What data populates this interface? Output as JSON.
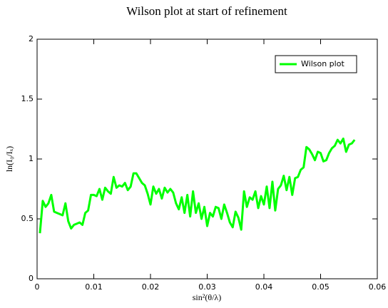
{
  "chart_data": {
    "type": "line",
    "title": "Wilson plot at start of refinement",
    "xlabel": "sin²(θ/λ)",
    "ylabel": "ln(I₀/Iₓ)",
    "xlim": [
      0,
      0.06
    ],
    "xticks": [
      0,
      0.01,
      0.02,
      0.03,
      0.04,
      0.05,
      0.06
    ],
    "ylim": [
      0,
      2
    ],
    "yticks": [
      0,
      0.5,
      1,
      1.5,
      2
    ],
    "legend": "upper right",
    "x": [
      0.0005,
      0.001,
      0.0015,
      0.002,
      0.0025,
      0.003,
      0.0035,
      0.004,
      0.0045,
      0.005,
      0.0055,
      0.006,
      0.0065,
      0.007,
      0.0075,
      0.008,
      0.0085,
      0.009,
      0.0095,
      0.01,
      0.0105,
      0.011,
      0.0115,
      0.012,
      0.0125,
      0.013,
      0.0135,
      0.014,
      0.0145,
      0.015,
      0.0155,
      0.016,
      0.0165,
      0.017,
      0.0175,
      0.018,
      0.0185,
      0.019,
      0.0195,
      0.02,
      0.0205,
      0.021,
      0.0215,
      0.022,
      0.0225,
      0.023,
      0.0235,
      0.024,
      0.0245,
      0.025,
      0.0255,
      0.026,
      0.0265,
      0.027,
      0.0275,
      0.028,
      0.0285,
      0.029,
      0.0295,
      0.03,
      0.0305,
      0.031,
      0.0315,
      0.032,
      0.0325,
      0.033,
      0.0335,
      0.034,
      0.0345,
      0.035,
      0.0355,
      0.036,
      0.0365,
      0.037,
      0.0375,
      0.038,
      0.0385,
      0.039,
      0.0395,
      0.04,
      0.0405,
      0.041,
      0.0415,
      0.042,
      0.0425,
      0.043,
      0.0435,
      0.044,
      0.0445,
      0.045,
      0.0455,
      0.046,
      0.0465,
      0.047,
      0.0475,
      0.048,
      0.0485,
      0.049,
      0.0495,
      0.05,
      0.0505,
      0.051,
      0.0515,
      0.052,
      0.0525,
      0.053,
      0.0535,
      0.054,
      0.0545,
      0.055,
      0.0555,
      0.056
    ],
    "series": [
      {
        "name": "Wilson plot",
        "color": "#00ff00",
        "values": [
          0.38,
          0.65,
          0.6,
          0.63,
          0.7,
          0.56,
          0.55,
          0.54,
          0.53,
          0.63,
          0.48,
          0.42,
          0.45,
          0.46,
          0.47,
          0.45,
          0.55,
          0.57,
          0.7,
          0.7,
          0.69,
          0.75,
          0.66,
          0.76,
          0.73,
          0.71,
          0.85,
          0.76,
          0.78,
          0.77,
          0.8,
          0.74,
          0.77,
          0.88,
          0.88,
          0.84,
          0.8,
          0.78,
          0.71,
          0.62,
          0.77,
          0.71,
          0.75,
          0.67,
          0.76,
          0.72,
          0.75,
          0.72,
          0.63,
          0.58,
          0.68,
          0.55,
          0.7,
          0.52,
          0.73,
          0.55,
          0.63,
          0.5,
          0.6,
          0.44,
          0.55,
          0.52,
          0.6,
          0.59,
          0.5,
          0.62,
          0.55,
          0.47,
          0.43,
          0.56,
          0.51,
          0.41,
          0.73,
          0.6,
          0.68,
          0.66,
          0.73,
          0.59,
          0.69,
          0.62,
          0.77,
          0.59,
          0.81,
          0.57,
          0.75,
          0.78,
          0.86,
          0.74,
          0.85,
          0.7,
          0.84,
          0.85,
          0.91,
          0.93,
          1.1,
          1.08,
          1.04,
          0.99,
          1.06,
          1.05,
          0.98,
          0.99,
          1.05,
          1.09,
          1.11,
          1.16,
          1.13,
          1.17,
          1.06,
          1.12,
          1.13,
          1.16
        ]
      }
    ]
  }
}
